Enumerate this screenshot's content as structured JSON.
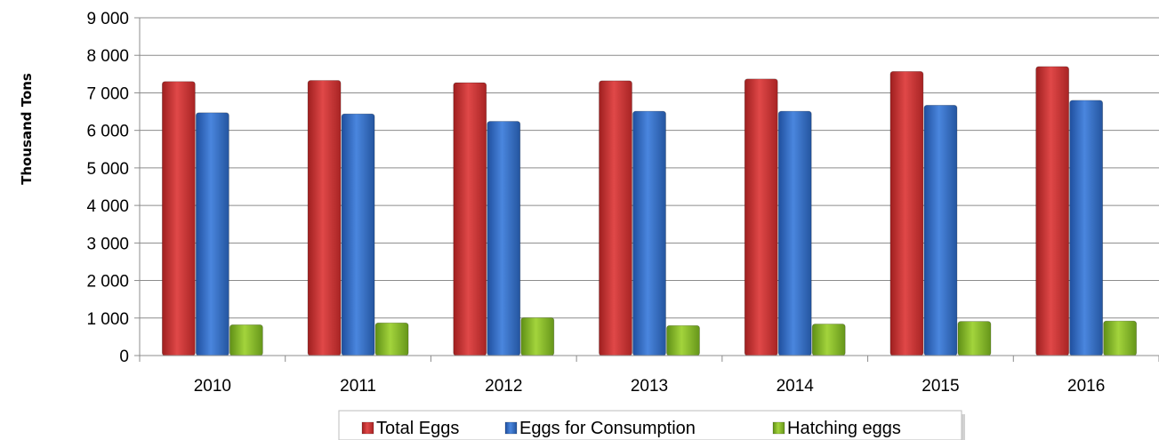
{
  "chart_data": {
    "type": "bar",
    "ylabel": "Thousand Tons",
    "categories": [
      "2010",
      "2011",
      "2012",
      "2013",
      "2014",
      "2015",
      "2016"
    ],
    "y_ticks": [
      "0",
      "1 000",
      "2 000",
      "3 000",
      "4 000",
      "5 000",
      "6 000",
      "7 000",
      "8 000",
      "9 000"
    ],
    "ylim": [
      0,
      9000
    ],
    "grid": true,
    "legend_position": "bottom",
    "series": [
      {
        "name": "Total Eggs",
        "color": "#d63c3c",
        "values": [
          7300,
          7330,
          7270,
          7320,
          7370,
          7570,
          7700
        ]
      },
      {
        "name": "Eggs for Consumption",
        "color": "#3a73cc",
        "values": [
          6470,
          6440,
          6240,
          6510,
          6510,
          6670,
          6800
        ]
      },
      {
        "name": "Hatching eggs",
        "color": "#8fc22f",
        "values": [
          820,
          870,
          1010,
          800,
          840,
          910,
          920
        ]
      }
    ]
  }
}
